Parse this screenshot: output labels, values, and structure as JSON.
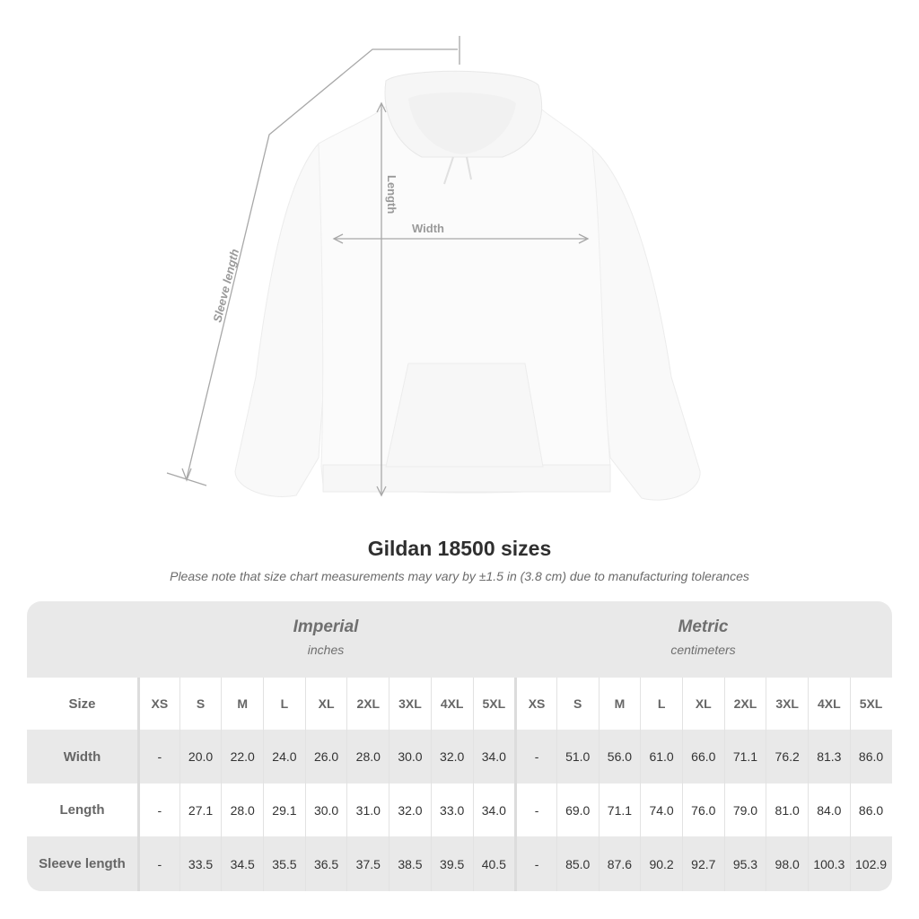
{
  "diagram": {
    "sleeve_label": "Sleeve length",
    "length_label": "Length",
    "width_label": "Width"
  },
  "title": "Gildan 18500 sizes",
  "subtitle": "Please note that size chart measurements may vary by ±1.5 in (3.8 cm) due to manufacturing tolerances",
  "table": {
    "imperial": {
      "name": "Imperial",
      "unit": "inches"
    },
    "metric": {
      "name": "Metric",
      "unit": "centimeters"
    },
    "size_label": "Size",
    "sizes": [
      "XS",
      "S",
      "M",
      "L",
      "XL",
      "2XL",
      "3XL",
      "4XL",
      "5XL"
    ],
    "rows": [
      {
        "label": "Width",
        "imperial": [
          "-",
          "20.0",
          "22.0",
          "24.0",
          "26.0",
          "28.0",
          "30.0",
          "32.0",
          "34.0"
        ],
        "metric": [
          "-",
          "51.0",
          "56.0",
          "61.0",
          "66.0",
          "71.1",
          "76.2",
          "81.3",
          "86.0"
        ]
      },
      {
        "label": "Length",
        "imperial": [
          "-",
          "27.1",
          "28.0",
          "29.1",
          "30.0",
          "31.0",
          "32.0",
          "33.0",
          "34.0"
        ],
        "metric": [
          "-",
          "69.0",
          "71.1",
          "74.0",
          "76.0",
          "79.0",
          "81.0",
          "84.0",
          "86.0"
        ]
      },
      {
        "label": "Sleeve length",
        "imperial": [
          "-",
          "33.5",
          "34.5",
          "35.5",
          "36.5",
          "37.5",
          "38.5",
          "39.5",
          "40.5"
        ],
        "metric": [
          "-",
          "85.0",
          "87.6",
          "90.2",
          "92.7",
          "95.3",
          "98.0",
          "100.3",
          "102.9"
        ]
      }
    ]
  },
  "colors": {
    "table_bg": "#e9e9e9",
    "text": "#333333",
    "muted": "#6f6f6f",
    "measure_line": "#a8a8a8"
  }
}
